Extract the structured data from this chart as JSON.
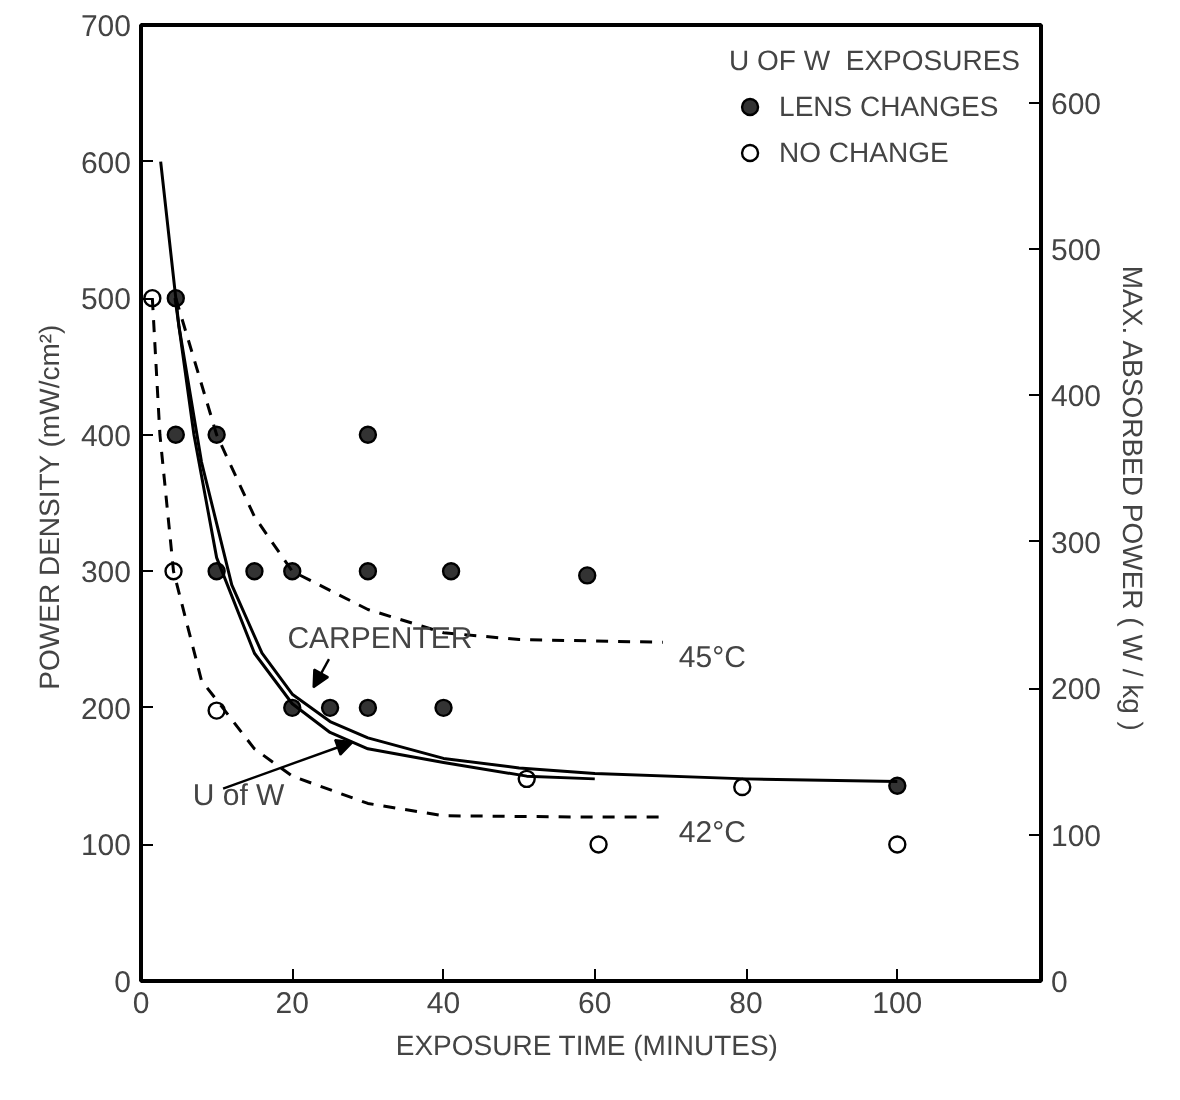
{
  "chart_data": {
    "type": "scatter",
    "xlabel": "EXPOSURE TIME  (MINUTES)",
    "ylabel": "POWER DENSITY  (mW/cm²)",
    "y2label": "MAX. ABSORBED POWER  ( W / kg )",
    "legend_title": "U OF W  EXPOSURES",
    "legend": "top right",
    "grid": false,
    "xlim": [
      0,
      119
    ],
    "xticks": [
      0,
      20,
      40,
      60,
      80,
      100
    ],
    "ylim": [
      0,
      700
    ],
    "yticks": [
      0,
      100,
      200,
      300,
      400,
      500,
      600,
      700
    ],
    "y2lim": [
      0,
      653
    ],
    "y2ticks": [
      0,
      100,
      200,
      300,
      400,
      500,
      600
    ],
    "series": [
      {
        "name": "LENS CHANGES",
        "color": "#333333",
        "marker": "circle",
        "x": [
          4.6,
          4.6,
          10,
          30,
          10,
          15,
          20,
          30,
          41,
          59,
          20,
          25,
          30,
          40,
          100
        ],
        "values": [
          500,
          400,
          400,
          400,
          300,
          300,
          300,
          300,
          300,
          297,
          200,
          200,
          200,
          200,
          143
        ]
      },
      {
        "name": "NO CHANGE",
        "color": "#ffffff",
        "marker": "circle",
        "x": [
          1.5,
          4.3,
          10,
          51,
          79.5,
          60.5,
          100
        ],
        "values": [
          500,
          300,
          198,
          148,
          142,
          100,
          100
        ]
      },
      {
        "type": "line",
        "color": "#000000",
        "line_style": "solid",
        "x": [
          2.6,
          5,
          8,
          12,
          16,
          20,
          25,
          30,
          40,
          50,
          60,
          80,
          100
        ],
        "values": [
          600,
          480,
          380,
          290,
          240,
          210,
          190,
          178,
          163,
          156,
          152,
          148,
          146
        ]
      },
      {
        "type": "line",
        "color": "#000000",
        "line_style": "solid",
        "x": [
          4.5,
          7,
          10,
          15,
          20,
          25,
          30,
          40,
          51,
          60
        ],
        "values": [
          500,
          400,
          310,
          240,
          203,
          182,
          170,
          160,
          150,
          148
        ]
      },
      {
        "type": "line",
        "color": "#000000",
        "line_style": "dashed",
        "x": [
          4.6,
          10,
          15,
          20,
          30,
          40,
          50,
          69
        ],
        "values": [
          500,
          400,
          340,
          300,
          272,
          255,
          250,
          248
        ]
      },
      {
        "type": "line",
        "color": "#000000",
        "line_style": "dashed",
        "x": [
          1.5,
          2.5,
          4.3,
          8,
          15,
          20,
          30,
          40,
          60,
          69
        ],
        "values": [
          500,
          400,
          300,
          220,
          170,
          150,
          130,
          121,
          120,
          120
        ]
      }
    ],
    "annotations": [
      {
        "text": "CARPENTER",
        "x": 22,
        "y": 212
      },
      {
        "text": "U of W",
        "x": 28,
        "y": 172
      },
      {
        "text": "45°C",
        "x": 69,
        "y": 248
      },
      {
        "text": "42°C",
        "x": 69,
        "y": 120
      }
    ]
  }
}
